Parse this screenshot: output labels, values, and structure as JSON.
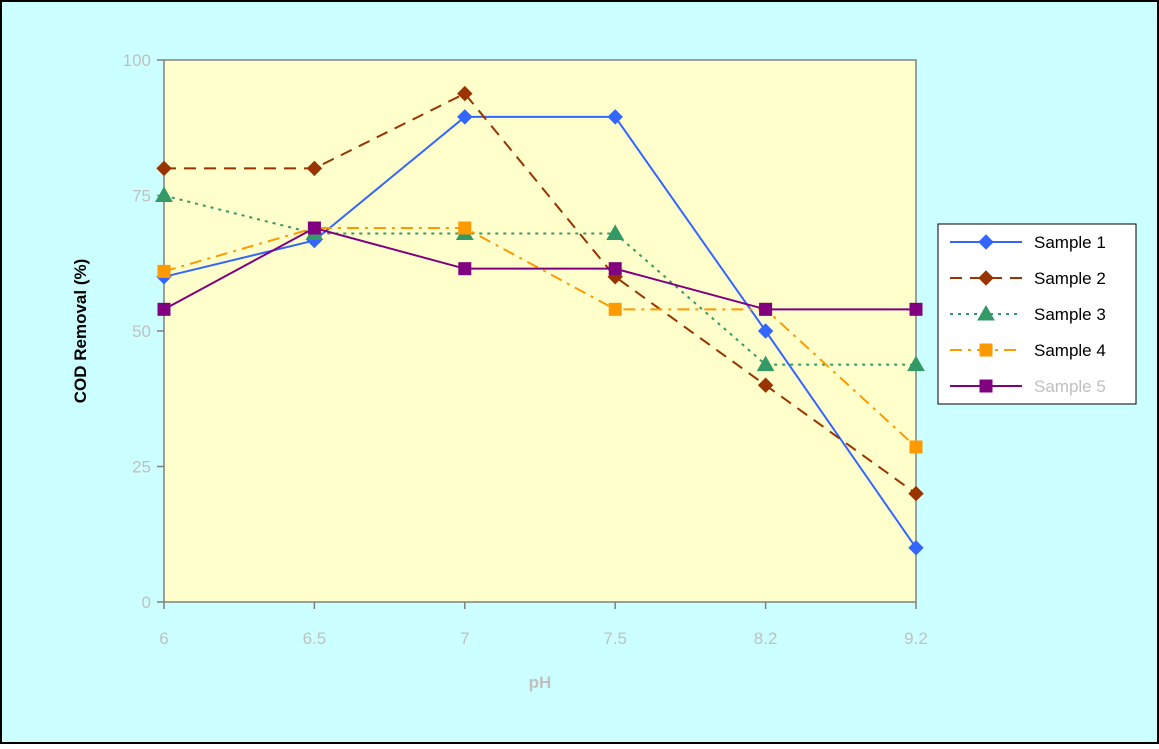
{
  "chart_data": {
    "type": "line",
    "title": "",
    "xlabel": "pH",
    "ylabel": "COD Removal (%)",
    "categories": [
      "6",
      "6.5",
      "7",
      "7.5",
      "8.2",
      "9.2"
    ],
    "ylim": [
      0,
      100
    ],
    "yticks": [
      "0",
      "25",
      "50",
      "75",
      "100"
    ],
    "grid": false,
    "legend_position": "right",
    "background_color": "#ccffff",
    "plot_background_color": "#ffffcc",
    "series": [
      {
        "name": "Sample 1",
        "values": [
          60,
          66.7,
          89.5,
          89.5,
          50,
          10
        ],
        "color": "#3366ff",
        "marker": "diamond",
        "dash": "solid"
      },
      {
        "name": "Sample 2",
        "values": [
          80,
          80,
          93.8,
          60,
          40,
          20
        ],
        "color": "#993300",
        "marker": "diamond",
        "dash": "dashed"
      },
      {
        "name": "Sample 3",
        "values": [
          75,
          68,
          68,
          68,
          43.8,
          43.8
        ],
        "color": "#339966",
        "marker": "triangle",
        "dash": "dotted"
      },
      {
        "name": "Sample 4",
        "values": [
          61,
          69,
          69,
          54,
          54,
          28.6
        ],
        "color": "#ff9900",
        "marker": "square",
        "dash": "dash-dot"
      },
      {
        "name": "Sample 5",
        "values": [
          54,
          69,
          61.5,
          61.5,
          54,
          54
        ],
        "color": "#800080",
        "marker": "square",
        "dash": "solid"
      }
    ]
  }
}
